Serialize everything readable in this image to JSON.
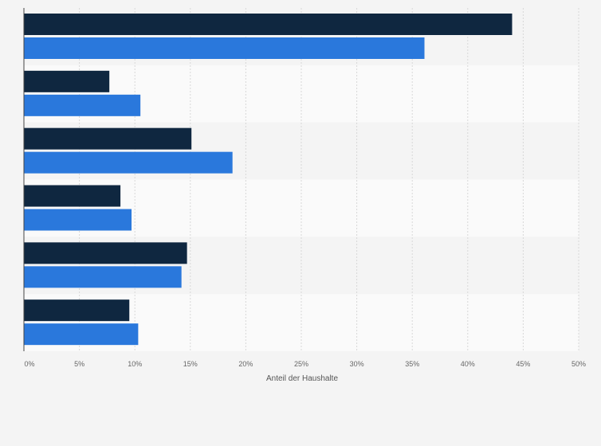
{
  "chart_data": {
    "type": "bar",
    "orientation": "horizontal",
    "categories": [
      "",
      "",
      "",
      "",
      "",
      ""
    ],
    "series": [
      {
        "values": [
          44.0,
          7.7,
          15.1,
          8.7,
          14.7,
          9.5
        ]
      },
      {
        "values": [
          36.1,
          10.5,
          18.8,
          9.7,
          14.2,
          10.3
        ]
      }
    ],
    "xlabel": "Anteil der Haushalte",
    "ylabel": "",
    "xlim": [
      0,
      50
    ],
    "ticks": [
      "0%",
      "5%",
      "10%",
      "15%",
      "20%",
      "25%",
      "30%",
      "35%",
      "40%",
      "45%",
      "50%"
    ],
    "grid": true,
    "colors": {
      "series": [
        "#0f2740",
        "#2a78dc"
      ],
      "band_dark": "#f4f4f4",
      "band_light": "#fafafa",
      "grid": "#d8d8d8",
      "axis": "#444444",
      "text": "#666666"
    }
  }
}
